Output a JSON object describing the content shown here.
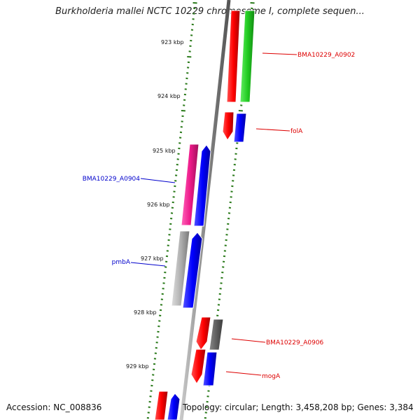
{
  "title": "Burkholderia mallei NCTC 10229 chromosome I, complete sequen...",
  "footer": {
    "accession": "Accession: NC_008836",
    "summary": "Topology: circular; Length: 3,458,208 bp; Genes: 3,384"
  },
  "scale_labels": [
    "923 kbp",
    "924 kbp",
    "925 kbp",
    "926 kbp",
    "927 kbp",
    "928 kbp",
    "929 kbp"
  ],
  "gene_labels": {
    "bma0902": "BMA10229_A0902",
    "folA": "folA",
    "bma0904": "BMA10229_A0904",
    "pmbA": "pmbA",
    "bma0906": "BMA10229_A0906",
    "mogA": "mogA"
  },
  "colors": {
    "backbone": "#8a8a8a",
    "tick_green": "#2a7a1a",
    "forward_red": "#ff0000",
    "cds_blue": "#0000ff",
    "cds_green": "#22cc22",
    "cds_magenta": "#ee1a8a",
    "cds_grey": "#b0b0b0",
    "label_red": "#dd0000",
    "label_blue": "#0000cc"
  }
}
